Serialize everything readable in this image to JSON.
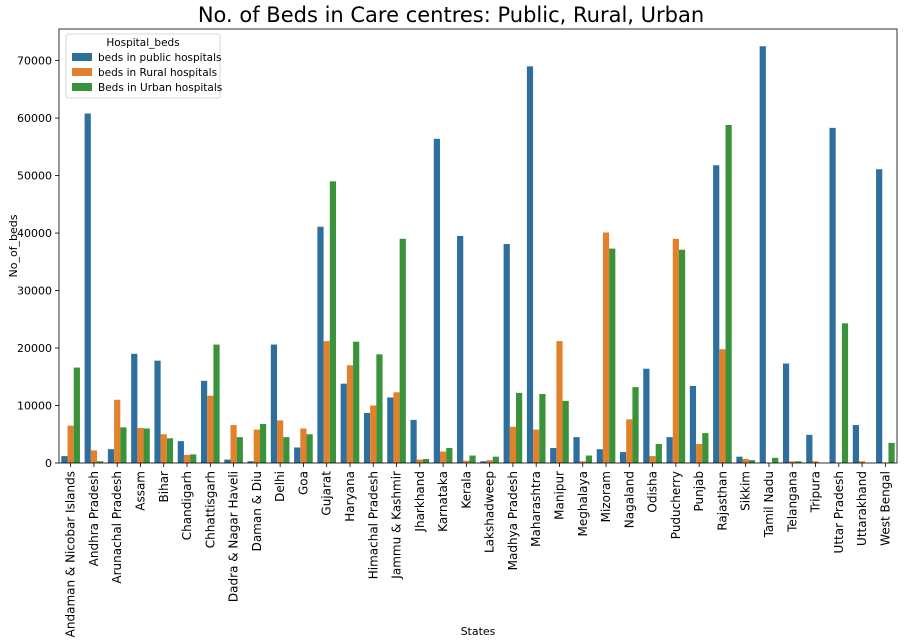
{
  "chart_data": {
    "type": "bar",
    "title": "No. of Beds in Care centres: Public, Rural, Urban",
    "xlabel": "States",
    "ylabel": "No_of_beds",
    "ylim": [
      0,
      75500
    ],
    "yticks": [
      0,
      10000,
      20000,
      30000,
      40000,
      50000,
      60000,
      70000
    ],
    "grid": false,
    "legend": {
      "title": "Hospital_beds",
      "placement": "top-left"
    },
    "categories": [
      "Andaman & Nicobar Islands",
      "Andhra Pradesh",
      "Arunachal Pradesh",
      "Assam",
      "Bihar",
      "Chandigarh",
      "Chhattisgarh",
      "Dadra & Nagar Haveli",
      "Daman & Diu",
      "Delhi",
      "Goa",
      "Gujarat",
      "Haryana",
      "Himachal Pradesh",
      "Jammu & Kashmir",
      "Jharkhand",
      "Karnataka",
      "Kerala",
      "Lakshadweep",
      "Madhya Pradesh",
      "Maharashtra",
      "Manipur",
      "Meghalaya",
      "Mizoram",
      "Nagaland",
      "Odisha",
      "Puducherry",
      "Punjab",
      "Rajasthan",
      "Sikkim",
      "Tamil Nadu",
      "Telangana",
      "Tripura",
      "Uttar Pradesh",
      "Uttarakhand",
      "West Bengal"
    ],
    "series": [
      {
        "name": "beds in public hospitals",
        "color": "#2e6f9e",
        "values": [
          1200,
          60800,
          2400,
          19000,
          17800,
          3800,
          14300,
          600,
          300,
          20600,
          2700,
          41100,
          13800,
          8700,
          11400,
          7500,
          56400,
          39500,
          300,
          38100,
          69000,
          2600,
          4500,
          2400,
          1900,
          16400,
          4500,
          13400,
          51800,
          1100,
          72500,
          17300,
          4900,
          58300,
          6600,
          51100
        ]
      },
      {
        "name": "beds in Rural hospitals",
        "color": "#e1812c",
        "values": [
          6500,
          2200,
          11000,
          6100,
          5000,
          1400,
          11700,
          6600,
          5800,
          7400,
          6000,
          21200,
          17000,
          10000,
          12300,
          600,
          2000,
          400,
          500,
          6300,
          5800,
          21200,
          300,
          40100,
          7600,
          1200,
          39000,
          3300,
          19800,
          700,
          0,
          300,
          300,
          0,
          300,
          0
        ]
      },
      {
        "name": "Beds in Urban hospitals",
        "color": "#3a923a",
        "values": [
          16600,
          300,
          6200,
          6000,
          4300,
          1500,
          20600,
          4500,
          6800,
          4500,
          5000,
          49000,
          21100,
          18900,
          39000,
          700,
          2600,
          1300,
          1100,
          12200,
          12000,
          10800,
          1300,
          37300,
          13200,
          3300,
          37100,
          5200,
          58800,
          500,
          900,
          300,
          0,
          24300,
          0,
          3500
        ]
      }
    ]
  }
}
